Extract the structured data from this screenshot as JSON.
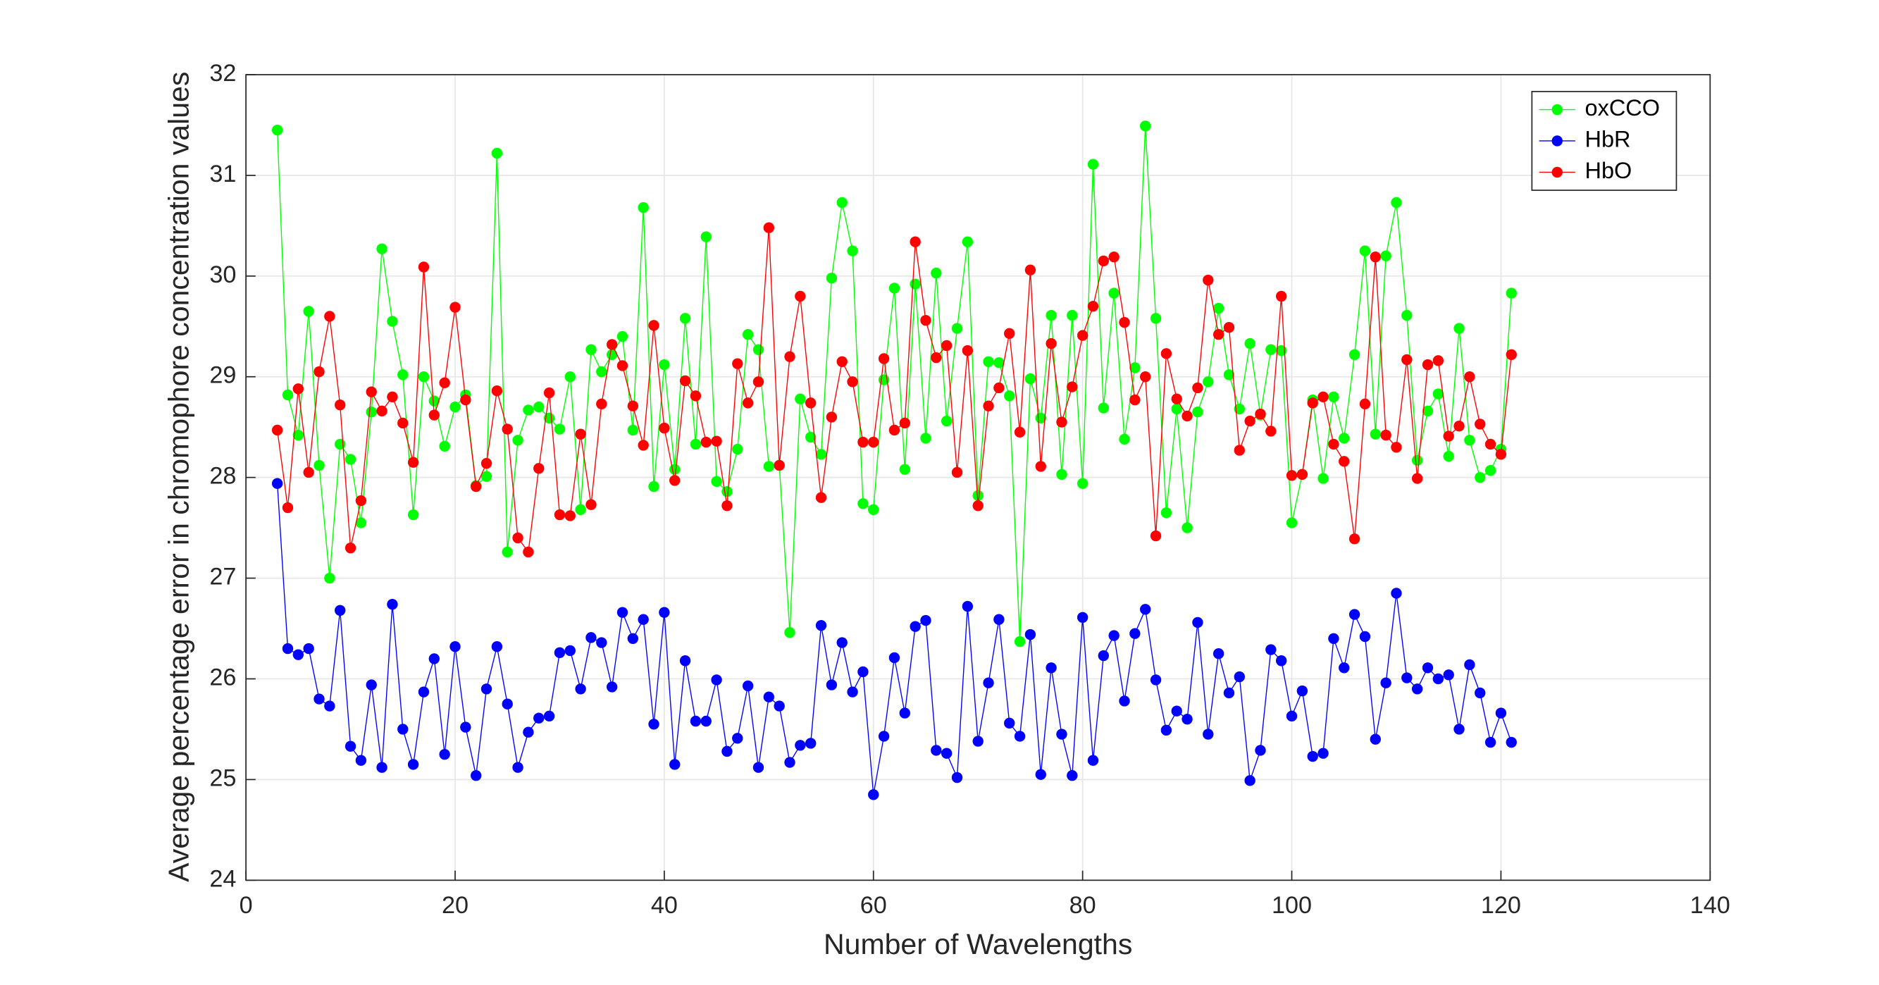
{
  "chart_data": {
    "type": "line",
    "xlabel": "Number of Wavelengths",
    "ylabel": "Average percentage error in chromophore concentration values",
    "x": [
      3,
      4,
      5,
      6,
      7,
      8,
      9,
      10,
      11,
      12,
      13,
      14,
      15,
      16,
      17,
      18,
      19,
      20,
      21,
      22,
      23,
      24,
      25,
      26,
      27,
      28,
      29,
      30,
      31,
      32,
      33,
      34,
      35,
      36,
      37,
      38,
      39,
      40,
      41,
      42,
      43,
      44,
      45,
      46,
      47,
      48,
      49,
      50,
      51,
      52,
      53,
      54,
      55,
      56,
      57,
      58,
      59,
      60,
      61,
      62,
      63,
      64,
      65,
      66,
      67,
      68,
      69,
      70,
      71,
      72,
      73,
      74,
      75,
      76,
      77,
      78,
      79,
      80,
      81,
      82,
      83,
      84,
      85,
      86,
      87,
      88,
      89,
      90,
      91,
      92,
      93,
      94,
      95,
      96,
      97,
      98,
      99,
      100,
      101,
      102,
      103,
      104,
      105,
      106,
      107,
      108,
      109,
      110,
      111,
      112,
      113,
      114,
      115,
      116,
      117,
      118,
      119,
      120,
      121
    ],
    "series": [
      {
        "name": "oxCCO",
        "color": "#00ff00",
        "values": [
          31.45,
          28.82,
          28.42,
          29.65,
          28.12,
          27.0,
          28.33,
          28.18,
          27.55,
          28.65,
          30.27,
          29.55,
          29.02,
          27.63,
          29.0,
          28.76,
          28.31,
          28.7,
          28.82,
          27.92,
          28.01,
          31.22,
          27.26,
          28.37,
          28.67,
          28.7,
          28.59,
          28.48,
          29.0,
          27.68,
          29.27,
          29.05,
          29.22,
          29.4,
          28.47,
          30.68,
          27.91,
          29.12,
          28.08,
          29.58,
          28.33,
          30.39,
          27.96,
          27.86,
          28.28,
          29.42,
          29.27,
          28.11,
          28.12,
          26.46,
          28.78,
          28.4,
          28.23,
          29.98,
          30.73,
          30.25,
          27.74,
          27.68,
          28.97,
          29.88,
          28.08,
          29.92,
          28.39,
          30.03,
          28.56,
          29.48,
          30.34,
          27.82,
          29.15,
          29.14,
          28.81,
          26.37,
          28.98,
          28.59,
          29.61,
          28.03,
          29.61,
          27.94,
          31.11,
          28.69,
          29.83,
          28.38,
          29.09,
          31.49,
          29.58,
          27.65,
          28.68,
          27.5,
          28.65,
          28.95,
          29.68,
          29.02,
          28.68,
          29.33,
          28.62,
          29.27,
          29.26,
          27.55,
          28.03,
          28.77,
          27.99,
          28.8,
          28.39,
          29.22,
          30.25,
          28.43,
          30.2,
          30.73,
          29.61,
          28.17,
          28.66,
          28.83,
          28.21,
          29.48,
          28.37,
          28.0,
          28.07,
          28.28,
          29.83
        ]
      },
      {
        "name": "HbR",
        "color": "#0000ff",
        "values": [
          27.94,
          26.3,
          26.24,
          26.3,
          25.8,
          25.73,
          26.68,
          25.33,
          25.19,
          25.94,
          25.12,
          26.74,
          25.5,
          25.15,
          25.87,
          26.2,
          25.25,
          26.32,
          25.52,
          25.04,
          25.9,
          26.32,
          25.75,
          25.12,
          25.47,
          25.61,
          25.63,
          26.26,
          26.28,
          25.9,
          26.41,
          26.36,
          25.92,
          26.66,
          26.4,
          26.59,
          25.55,
          26.66,
          25.15,
          26.18,
          25.58,
          25.58,
          25.99,
          25.28,
          25.41,
          25.93,
          25.12,
          25.82,
          25.73,
          25.17,
          25.34,
          25.36,
          26.53,
          25.94,
          26.36,
          25.87,
          26.07,
          24.85,
          25.43,
          26.21,
          25.66,
          26.52,
          26.58,
          25.29,
          25.26,
          25.02,
          26.72,
          25.38,
          25.96,
          26.59,
          25.56,
          25.43,
          26.44,
          25.05,
          26.11,
          25.45,
          25.04,
          26.61,
          25.19,
          26.23,
          26.43,
          25.78,
          26.45,
          26.69,
          25.99,
          25.49,
          25.68,
          25.6,
          26.56,
          25.45,
          26.25,
          25.86,
          26.02,
          24.99,
          25.29,
          26.29,
          26.18,
          25.63,
          25.88,
          25.23,
          25.26,
          26.4,
          26.11,
          26.64,
          26.42,
          25.4,
          25.96,
          26.85,
          26.01,
          25.9,
          26.11,
          26.0,
          26.04,
          25.5,
          26.14,
          25.86,
          25.37,
          25.66,
          25.37
        ]
      },
      {
        "name": "HbO",
        "color": "#ff0000",
        "values": [
          28.47,
          27.7,
          28.88,
          28.05,
          29.05,
          29.6,
          28.72,
          27.3,
          27.77,
          28.85,
          28.66,
          28.8,
          28.54,
          28.15,
          30.09,
          28.62,
          28.94,
          29.69,
          28.77,
          27.91,
          28.14,
          28.86,
          28.48,
          27.4,
          27.26,
          28.09,
          28.84,
          27.63,
          27.62,
          28.43,
          27.73,
          28.73,
          29.32,
          29.11,
          28.71,
          28.32,
          29.51,
          28.49,
          27.97,
          28.96,
          28.81,
          28.35,
          28.36,
          27.72,
          29.13,
          28.74,
          28.95,
          30.48,
          28.12,
          29.2,
          29.8,
          28.74,
          27.8,
          28.6,
          29.15,
          28.95,
          28.35,
          28.35,
          29.18,
          28.47,
          28.54,
          30.34,
          29.56,
          29.19,
          29.31,
          28.05,
          29.26,
          27.72,
          28.71,
          28.89,
          29.43,
          28.45,
          30.06,
          28.11,
          29.33,
          28.55,
          28.9,
          29.41,
          29.7,
          30.15,
          30.19,
          29.54,
          28.77,
          29.0,
          27.42,
          29.23,
          28.78,
          28.61,
          28.89,
          29.96,
          29.42,
          29.49,
          28.27,
          28.56,
          28.63,
          28.46,
          29.8,
          28.02,
          28.03,
          28.74,
          28.8,
          28.33,
          28.16,
          27.39,
          28.73,
          30.19,
          28.42,
          28.3,
          29.17,
          27.99,
          29.12,
          29.16,
          28.41,
          28.51,
          29.0,
          28.53,
          28.33,
          28.23,
          29.22
        ]
      }
    ],
    "xlim": [
      0,
      140
    ],
    "xticks": [
      0,
      20,
      40,
      60,
      80,
      100,
      120,
      140
    ],
    "ylim": [
      24,
      32
    ],
    "yticks": [
      24,
      25,
      26,
      27,
      28,
      29,
      30,
      31,
      32
    ],
    "grid": true,
    "legend": "northeast"
  }
}
